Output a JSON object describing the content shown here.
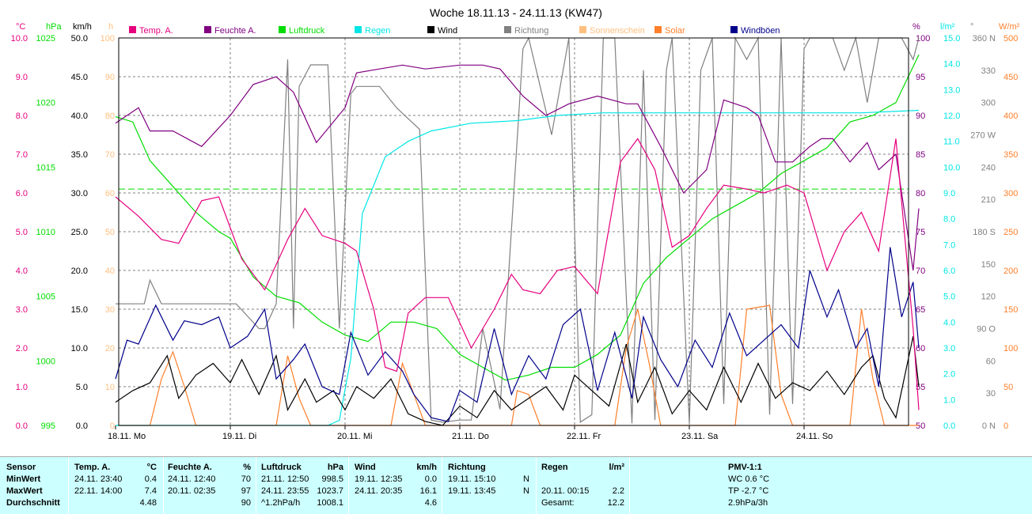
{
  "title": "Woche 18.11.13 - 24.11.13 (KW47)",
  "colors": {
    "temp": "#e6007e",
    "feuchte": "#800080",
    "luftdruck": "#00dd00",
    "regen": "#00e5e5",
    "wind": "#000000",
    "richtung": "#808080",
    "sonnenschein": "#ffc080",
    "solar": "#ff7f2a",
    "windboeen": "#00008b",
    "grid": "#808080",
    "table_bg": "#ccffff"
  },
  "axis_units": {
    "temp": "°C",
    "pressure": "hPa",
    "wind": "km/h",
    "sun": "h",
    "humidity": "%",
    "rain": "l/m²",
    "direction": "°",
    "solar": "W/m²"
  },
  "legend": [
    {
      "label": "Temp. A.",
      "color": "#e6007e"
    },
    {
      "label": "Feuchte A.",
      "color": "#800080"
    },
    {
      "label": "Luftdruck",
      "color": "#00dd00"
    },
    {
      "label": "Regen",
      "color": "#00e5e5"
    },
    {
      "label": "Wind",
      "color": "#000000"
    },
    {
      "label": "Richtung",
      "color": "#808080"
    },
    {
      "label": "Sonnenschein",
      "color": "#ffc080"
    },
    {
      "label": "Solar",
      "color": "#ff7f2a"
    },
    {
      "label": "Windböen",
      "color": "#00008b"
    }
  ],
  "chart_data": {
    "type": "line",
    "title": "Woche 18.11.13 - 24.11.13 (KW47)",
    "x_labels": [
      "18.11. Mo",
      "19.11. Di",
      "20.11. Mi",
      "21.11. Do",
      "22.11. Fr",
      "23.11. Sa",
      "24.11. So"
    ],
    "axes": {
      "temp": {
        "unit": "°C",
        "min": 0,
        "max": 10,
        "ticks": [
          "0.0",
          "1.0",
          "2.0",
          "3.0",
          "4.0",
          "5.0",
          "6.0",
          "7.0",
          "8.0",
          "9.0",
          "10.0"
        ]
      },
      "pressure": {
        "unit": "hPa",
        "min": 995,
        "max": 1025,
        "ticks": [
          "995",
          "1000",
          "1005",
          "1010",
          "1015",
          "1020",
          "1025"
        ]
      },
      "wind": {
        "unit": "km/h",
        "min": 0,
        "max": 50,
        "ticks": [
          "0.0",
          "5.0",
          "10.0",
          "15.0",
          "20.0",
          "25.0",
          "30.0",
          "35.0",
          "40.0",
          "45.0",
          "50.0"
        ]
      },
      "sun": {
        "unit": "h",
        "min": 0,
        "max": 100,
        "ticks": [
          "0",
          "10",
          "20",
          "30",
          "40",
          "50",
          "60",
          "70",
          "80",
          "90",
          "100"
        ]
      },
      "humidity": {
        "unit": "%",
        "min": 50,
        "max": 100,
        "ticks": [
          "50",
          "55",
          "60",
          "65",
          "70",
          "75",
          "80",
          "85",
          "90",
          "95",
          "100"
        ]
      },
      "rain": {
        "unit": "l/m²",
        "min": 0,
        "max": 15,
        "ticks": [
          "0.0",
          "1.0",
          "2.0",
          "3.0",
          "4.0",
          "5.0",
          "6.0",
          "7.0",
          "8.0",
          "9.0",
          "10.0",
          "11.0",
          "12.0",
          "13.0",
          "14.0",
          "15.0"
        ]
      },
      "direction": {
        "unit": "°",
        "min": 0,
        "max": 360,
        "ticks": [
          "0 N",
          "30",
          "60",
          "90 O",
          "120",
          "150",
          "180 S",
          "210",
          "240",
          "270 W",
          "300",
          "330",
          "360 N"
        ]
      },
      "solar": {
        "unit": "W/m²",
        "min": 0,
        "max": 500,
        "ticks": [
          "0",
          "50",
          "100",
          "150",
          "200",
          "250",
          "300",
          "350",
          "400",
          "450",
          "500"
        ]
      }
    },
    "pmv_reference_temp": 6.1,
    "series": [
      {
        "name": "Temp. A.",
        "axis": "temp",
        "x": [
          0,
          0.2,
          0.4,
          0.55,
          0.75,
          0.9,
          1.1,
          1.3,
          1.5,
          1.65,
          1.8,
          2.0,
          2.1,
          2.25,
          2.35,
          2.45,
          2.55,
          2.7,
          2.9,
          3.1,
          3.3,
          3.45,
          3.55,
          3.7,
          3.85,
          4.0,
          4.2,
          4.4,
          4.55,
          4.7,
          4.85,
          5.0,
          5.15,
          5.3,
          5.5,
          5.65,
          5.85,
          6.0,
          6.2,
          6.35,
          6.5,
          6.65,
          6.8,
          6.95,
          7.0
        ],
        "y": [
          5.9,
          5.4,
          4.8,
          4.7,
          5.8,
          5.9,
          4.3,
          3.5,
          4.8,
          5.6,
          4.9,
          4.7,
          4.5,
          3.0,
          1.5,
          1.4,
          2.9,
          3.3,
          3.3,
          2.0,
          3.0,
          3.9,
          3.5,
          3.4,
          4.0,
          4.1,
          3.4,
          6.8,
          7.4,
          6.6,
          4.6,
          4.9,
          5.6,
          6.2,
          6.1,
          6.0,
          6.2,
          6.0,
          4.0,
          5.0,
          5.5,
          4.5,
          7.4,
          2.5,
          0.4
        ]
      },
      {
        "name": "Feuchte A.",
        "axis": "humidity",
        "x": [
          0,
          0.2,
          0.3,
          0.5,
          0.75,
          1.0,
          1.2,
          1.4,
          1.55,
          1.75,
          2.0,
          2.1,
          2.3,
          2.5,
          2.7,
          3.0,
          3.2,
          3.35,
          3.55,
          3.75,
          3.95,
          4.2,
          4.45,
          4.55,
          4.75,
          4.95,
          5.15,
          5.3,
          5.5,
          5.6,
          5.75,
          5.9,
          6.05,
          6.15,
          6.25,
          6.4,
          6.55,
          6.65,
          6.8,
          6.95,
          7.0
        ],
        "y": [
          89,
          91,
          88,
          88,
          86,
          90,
          94,
          95,
          93,
          86.5,
          91,
          95.5,
          96,
          96.5,
          96,
          96.5,
          96.5,
          96,
          92.5,
          90,
          91.5,
          92.5,
          91.5,
          91.5,
          86,
          80,
          83,
          92,
          91,
          90,
          84,
          84,
          86,
          87,
          87,
          84,
          86.5,
          83,
          85,
          70,
          78
        ]
      },
      {
        "name": "Luftdruck",
        "axis": "pressure",
        "x": [
          0,
          0.15,
          0.3,
          0.5,
          0.7,
          0.9,
          1.0,
          1.2,
          1.4,
          1.6,
          1.8,
          2.0,
          2.2,
          2.4,
          2.6,
          2.8,
          3.0,
          3.2,
          3.4,
          3.6,
          3.8,
          4.0,
          4.2,
          4.4,
          4.6,
          4.8,
          5.0,
          5.2,
          5.4,
          5.6,
          5.8,
          6.0,
          6.2,
          6.4,
          6.6,
          6.8,
          7.0
        ],
        "y": [
          1018.9,
          1018.5,
          1015.5,
          1013.5,
          1011.5,
          1010.0,
          1009.5,
          1006.5,
          1005.0,
          1004.5,
          1003.0,
          1002.0,
          1001.5,
          1003.0,
          1003.0,
          1002.5,
          1000.5,
          999.5,
          998.5,
          998.9,
          999.5,
          999.5,
          1000.5,
          1002.0,
          1006.0,
          1008.0,
          1009.5,
          1011.0,
          1012.0,
          1013.0,
          1014.5,
          1015.5,
          1016.5,
          1018.5,
          1019.0,
          1020.0,
          1023.7
        ]
      },
      {
        "name": "Regen",
        "axis": "rain",
        "x": [
          0,
          1.85,
          1.95,
          2.05,
          2.15,
          2.35,
          2.55,
          2.75,
          3.1,
          3.5,
          3.85,
          4.25,
          4.8,
          5.5,
          6.5,
          7.0
        ],
        "y": [
          0,
          0,
          0.2,
          2.6,
          8.2,
          10.4,
          11.0,
          11.4,
          11.7,
          11.8,
          12.0,
          12.1,
          12.1,
          12.1,
          12.1,
          12.2
        ]
      },
      {
        "name": "Wind",
        "axis": "wind",
        "x": [
          0,
          0.15,
          0.3,
          0.45,
          0.55,
          0.7,
          0.85,
          1.0,
          1.1,
          1.25,
          1.4,
          1.5,
          1.65,
          1.75,
          1.9,
          2.0,
          2.1,
          2.25,
          2.4,
          2.55,
          2.7,
          2.85,
          3.0,
          3.15,
          3.3,
          3.45,
          3.6,
          3.75,
          3.9,
          4.0,
          4.15,
          4.3,
          4.45,
          4.55,
          4.7,
          4.85,
          5.0,
          5.15,
          5.3,
          5.45,
          5.6,
          5.75,
          5.9,
          6.05,
          6.2,
          6.35,
          6.5,
          6.6,
          6.7,
          6.8,
          6.95,
          7.0
        ],
        "y": [
          3.0,
          4.5,
          5.5,
          9.0,
          3.5,
          6.5,
          8.0,
          5.5,
          8.5,
          4.0,
          9.0,
          2.0,
          6.0,
          3.0,
          4.5,
          2.0,
          5.0,
          3.5,
          6.0,
          1.5,
          0.5,
          0.0,
          2.5,
          1.0,
          4.5,
          2.0,
          3.5,
          5.0,
          2.0,
          6.5,
          4.5,
          2.5,
          10.5,
          3.0,
          7.5,
          1.5,
          4.5,
          2.0,
          7.5,
          3.0,
          8.0,
          3.5,
          5.5,
          4.5,
          7.0,
          4.0,
          7.5,
          9.0,
          3.5,
          1.0,
          11.5,
          5.0
        ]
      },
      {
        "name": "Windböen",
        "axis": "wind",
        "x": [
          0,
          0.1,
          0.2,
          0.35,
          0.5,
          0.6,
          0.75,
          0.9,
          1.0,
          1.15,
          1.3,
          1.4,
          1.55,
          1.65,
          1.8,
          1.95,
          2.05,
          2.2,
          2.35,
          2.5,
          2.6,
          2.75,
          2.9,
          3.0,
          3.15,
          3.3,
          3.45,
          3.6,
          3.75,
          3.9,
          4.05,
          4.2,
          4.35,
          4.5,
          4.6,
          4.75,
          4.9,
          5.05,
          5.2,
          5.35,
          5.5,
          5.65,
          5.8,
          5.95,
          6.05,
          6.2,
          6.3,
          6.45,
          6.55,
          6.65,
          6.75,
          6.85,
          6.95,
          7.0
        ],
        "y": [
          6.0,
          11.0,
          10.5,
          15.5,
          11.0,
          13.5,
          13.0,
          14.0,
          10.0,
          11.5,
          15.0,
          6.0,
          8.5,
          10.5,
          5.0,
          4.0,
          12.0,
          6.5,
          9.5,
          7.0,
          4.0,
          1.0,
          0.5,
          4.5,
          3.0,
          12.5,
          4.0,
          9.0,
          6.0,
          13.0,
          15.0,
          4.5,
          12.0,
          3.5,
          14.0,
          8.5,
          5.0,
          11.0,
          7.5,
          14.5,
          9.0,
          11.0,
          13.0,
          10.0,
          20.0,
          14.0,
          17.5,
          10.0,
          12.5,
          5.0,
          23.0,
          14.0,
          18.5,
          10.0
        ]
      },
      {
        "name": "Richtung",
        "axis": "direction",
        "x": [
          0,
          0.25,
          0.3,
          0.4,
          0.45,
          0.55,
          0.8,
          1.0,
          1.05,
          1.25,
          1.3,
          1.4,
          1.5,
          1.55,
          1.6,
          1.7,
          1.85,
          1.95,
          2.05,
          2.1,
          2.2,
          2.3,
          2.45,
          2.65,
          2.75,
          2.85,
          3.0,
          3.1,
          3.2,
          3.35,
          3.55,
          3.6,
          3.8,
          3.95,
          4.05,
          4.15,
          4.25,
          4.35,
          4.5,
          4.6,
          4.7,
          4.8,
          4.85,
          5.0,
          5.1,
          5.2,
          5.3,
          5.4,
          5.5,
          5.6,
          5.7,
          5.8,
          5.9,
          6.0,
          6.05,
          6.15,
          6.25,
          6.35,
          6.45,
          6.55,
          6.65,
          6.75,
          6.85,
          6.95,
          7.0
        ],
        "y": [
          113,
          113,
          135,
          113,
          113,
          113,
          113,
          113,
          113,
          90,
          90,
          113,
          340,
          90,
          315,
          335,
          335,
          90,
          308,
          315,
          315,
          315,
          295,
          275,
          5,
          3,
          5,
          5,
          90,
          15,
          350,
          360,
          270,
          360,
          3,
          10,
          360,
          360,
          2,
          330,
          5,
          330,
          360,
          2,
          330,
          360,
          20,
          360,
          340,
          360,
          10,
          360,
          20,
          350,
          360,
          360,
          360,
          330,
          360,
          300,
          360,
          360,
          360,
          340,
          360
        ]
      },
      {
        "name": "Solar",
        "axis": "solar",
        "x": [
          0,
          0.3,
          0.4,
          0.5,
          0.6,
          0.7,
          1.2,
          1.4,
          1.5,
          1.6,
          1.7,
          2.2,
          2.4,
          2.5,
          2.6,
          2.7,
          3.2,
          3.45,
          3.5,
          3.6,
          3.7,
          4.2,
          4.35,
          4.45,
          4.55,
          4.65,
          4.75,
          5.2,
          5.4,
          5.5,
          5.7,
          5.8,
          5.9,
          6.2,
          6.4,
          6.5,
          6.6,
          6.7,
          7.0
        ],
        "y": [
          0,
          0,
          60,
          95,
          50,
          0,
          0,
          0,
          90,
          35,
          0,
          0,
          0,
          80,
          40,
          0,
          0,
          0,
          45,
          40,
          0,
          0,
          0,
          100,
          150,
          80,
          0,
          0,
          0,
          150,
          155,
          40,
          0,
          0,
          0,
          150,
          60,
          0,
          0
        ]
      }
    ]
  },
  "table": {
    "sensor_col": {
      "header": "Sensor",
      "rows": [
        "MinWert",
        "MaxWert",
        "Durchschnitt"
      ]
    },
    "temp": {
      "header": "Temp. A.",
      "unit": "°C",
      "rows": [
        {
          "time": "24.11.  23:40",
          "value": "0.4"
        },
        {
          "time": "22.11.  14:00",
          "value": "7.4"
        },
        {
          "time": "",
          "value": "4.48"
        }
      ]
    },
    "feuchte": {
      "header": "Feuchte A.",
      "unit": "%",
      "rows": [
        {
          "time": "24.11.  12:40",
          "value": "70"
        },
        {
          "time": "20.11.  02:35",
          "value": "97"
        },
        {
          "time": "",
          "value": "90"
        }
      ]
    },
    "luftdruck": {
      "header": "Luftdruck",
      "unit": "hPa",
      "rows": [
        {
          "time": "21.11.  12:50",
          "value": "998.5"
        },
        {
          "time": "24.11.  23:55",
          "value": "1023.7"
        },
        {
          "time": "^1.2hPa/h",
          "value": "1008.1"
        }
      ]
    },
    "wind": {
      "header": "Wind",
      "unit": "km/h",
      "rows": [
        {
          "time": "19.11.  12:35",
          "value": "0.0"
        },
        {
          "time": "24.11.  20:35",
          "value": "16.1"
        },
        {
          "time": "",
          "value": "4.6"
        }
      ]
    },
    "richtung": {
      "header": "Richtung",
      "unit": "",
      "rows": [
        {
          "time": "19.11.  15:10",
          "value": "N"
        },
        {
          "time": "19.11.  13:45",
          "value": "N"
        },
        {
          "time": "",
          "value": ""
        }
      ]
    },
    "regen": {
      "header": "Regen",
      "unit": "l/m²",
      "rows": [
        {
          "time": "",
          "value": ""
        },
        {
          "time": "20.11.  00:15",
          "value": "2.2"
        },
        {
          "time": "Gesamt:",
          "value": "12.2"
        }
      ]
    },
    "pmv": {
      "header": "PMV-1:1",
      "rows": [
        "WC 0.6 °C",
        "TP -2.7 °C",
        "2.9hPa/3h"
      ]
    }
  }
}
